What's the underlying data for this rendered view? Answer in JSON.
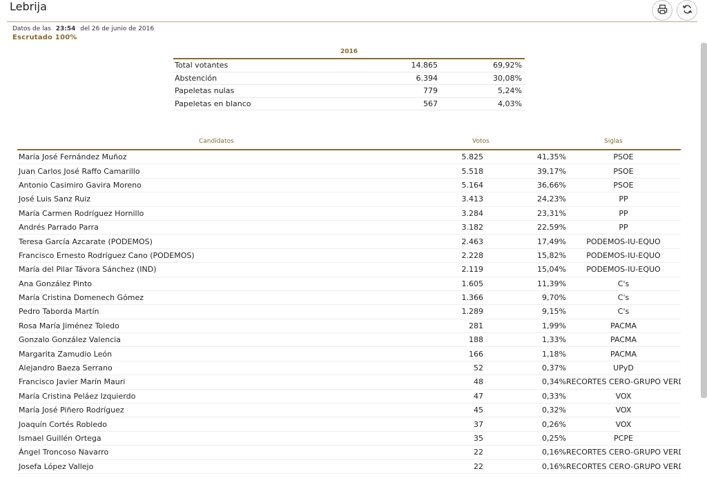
{
  "header": {
    "title": "Lebrija",
    "icons": {
      "print": "print-icon",
      "refresh": "refresh-icon"
    }
  },
  "meta": {
    "prefix": "Datos de las",
    "time": "23:54",
    "date": "del 26 de junio de 2016",
    "status": "Escrutado 100%"
  },
  "summary": {
    "year": "2016",
    "rows": [
      {
        "label": "Total votantes",
        "value": "14.865",
        "pct": "69,92%"
      },
      {
        "label": "Abstención",
        "value": "6.394",
        "pct": "30,08%"
      },
      {
        "label": "Papeletas nulas",
        "value": "779",
        "pct": "5,24%"
      },
      {
        "label": "Papeletas en blanco",
        "value": "567",
        "pct": "4,03%"
      }
    ]
  },
  "candidates": {
    "headers": {
      "name": "Candidatos",
      "votes": "Votos",
      "party": "Siglas"
    },
    "rows": [
      {
        "name": "María José Fernández Muñoz",
        "votes": "5.825",
        "pct": "41,35%",
        "party": "PSOE"
      },
      {
        "name": "Juan Carlos José Raffo Camarillo",
        "votes": "5.518",
        "pct": "39,17%",
        "party": "PSOE"
      },
      {
        "name": "Antonio Casimiro Gavira Moreno",
        "votes": "5.164",
        "pct": "36,66%",
        "party": "PSOE"
      },
      {
        "name": "José Luis Sanz Ruiz",
        "votes": "3.413",
        "pct": "24,23%",
        "party": "PP"
      },
      {
        "name": "María Carmen Rodríguez Hornillo",
        "votes": "3.284",
        "pct": "23,31%",
        "party": "PP"
      },
      {
        "name": "Andrés Parrado Parra",
        "votes": "3.182",
        "pct": "22,59%",
        "party": "PP"
      },
      {
        "name": "Teresa García Azcarate (PODEMOS)",
        "votes": "2.463",
        "pct": "17,49%",
        "party": "PODEMOS-IU-EQUO"
      },
      {
        "name": "Francisco Ernesto Rodríguez Cano (PODEMOS)",
        "votes": "2.228",
        "pct": "15,82%",
        "party": "PODEMOS-IU-EQUO"
      },
      {
        "name": "María del Pilar Távora Sánchez (IND)",
        "votes": "2.119",
        "pct": "15,04%",
        "party": "PODEMOS-IU-EQUO"
      },
      {
        "name": "Ana González Pinto",
        "votes": "1.605",
        "pct": "11,39%",
        "party": "C's"
      },
      {
        "name": "María Cristina Domenech Gómez",
        "votes": "1.366",
        "pct": "9,70%",
        "party": "C's"
      },
      {
        "name": "Pedro Taborda Martín",
        "votes": "1.289",
        "pct": "9,15%",
        "party": "C's"
      },
      {
        "name": "Rosa María Jiménez Toledo",
        "votes": "281",
        "pct": "1,99%",
        "party": "PACMA"
      },
      {
        "name": "Gonzalo González Valencia",
        "votes": "188",
        "pct": "1,33%",
        "party": "PACMA"
      },
      {
        "name": "Margarita Zamudio León",
        "votes": "166",
        "pct": "1,18%",
        "party": "PACMA"
      },
      {
        "name": "Alejandro Baeza Serrano",
        "votes": "52",
        "pct": "0,37%",
        "party": "UPyD"
      },
      {
        "name": "Francisco Javier Marín Mauri",
        "votes": "48",
        "pct": "0,34%",
        "party": "RECORTES CERO-GRUPO VERDE"
      },
      {
        "name": "María Cristina Peláez Izquierdo",
        "votes": "47",
        "pct": "0,33%",
        "party": "VOX"
      },
      {
        "name": "María José Piñero Rodríguez",
        "votes": "45",
        "pct": "0,32%",
        "party": "VOX"
      },
      {
        "name": "Joaquín Cortés Robledo",
        "votes": "37",
        "pct": "0,26%",
        "party": "VOX"
      },
      {
        "name": "Ismael Guillén Ortega",
        "votes": "35",
        "pct": "0,25%",
        "party": "PCPE"
      },
      {
        "name": "Ángel Troncoso Navarro",
        "votes": "22",
        "pct": "0,16%",
        "party": "RECORTES CERO-GRUPO VERDE"
      },
      {
        "name": "Josefa López Vallejo",
        "votes": "22",
        "pct": "0,16%",
        "party": "RECORTES CERO-GRUPO VERDE"
      }
    ]
  },
  "colors": {
    "accent": "#8a6a2c",
    "line": "#b9a88c"
  }
}
